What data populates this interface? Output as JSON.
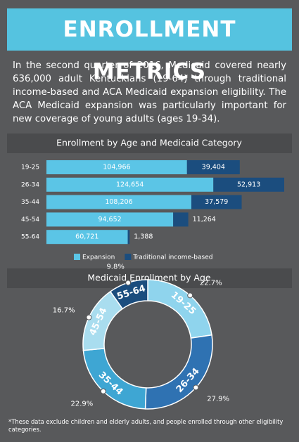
{
  "header": {
    "title": "ENROLLMENT METRICS",
    "text": "In the second quarter of 2016, Medicaid covered nearly 636,000 adult Kentuckians (19-64) through traditional income-based and ACA Medicaid expansion eligibility. The ACA Medicaid expansion was particularly important for new coverage of young adults (ages 19-34)."
  },
  "chart_data": [
    {
      "type": "bar",
      "orientation": "horizontal",
      "stacked": true,
      "title": "Enrollment by Age and Medicaid Category",
      "categories": [
        "19-25",
        "26-34",
        "35-44",
        "45-54",
        "55-64"
      ],
      "series": [
        {
          "name": "Expansion",
          "color": "#5bc5e6",
          "values": [
            104966,
            124654,
            108206,
            94652,
            60721
          ],
          "value_labels": [
            "104,966",
            "124,654",
            "108,206",
            "94,652",
            "60,721"
          ]
        },
        {
          "name": "Traditional income-based",
          "color": "#1b4d7e",
          "values": [
            39404,
            52913,
            37579,
            11264,
            1388
          ],
          "value_labels": [
            "39,404",
            "52,913",
            "37,579",
            "11,264",
            "1,388"
          ]
        }
      ],
      "legend": "bottom"
    },
    {
      "type": "pie",
      "donut": true,
      "title": "Medicaid Enrollment by Age",
      "categories": [
        "19-25",
        "26-34",
        "35-44",
        "45-54",
        "55-64"
      ],
      "values": [
        22.7,
        27.9,
        22.9,
        16.7,
        9.8
      ],
      "value_labels": [
        "22.7%",
        "27.9%",
        "22.9%",
        "16.7%",
        "9.8%"
      ],
      "colors": [
        "#8fd4ed",
        "#2f72b2",
        "#3ea6d3",
        "#a9ddef",
        "#1b4d7e"
      ]
    }
  ],
  "footnote": "*These data exclude children and elderly adults, and people enrolled through other eligibility categories."
}
